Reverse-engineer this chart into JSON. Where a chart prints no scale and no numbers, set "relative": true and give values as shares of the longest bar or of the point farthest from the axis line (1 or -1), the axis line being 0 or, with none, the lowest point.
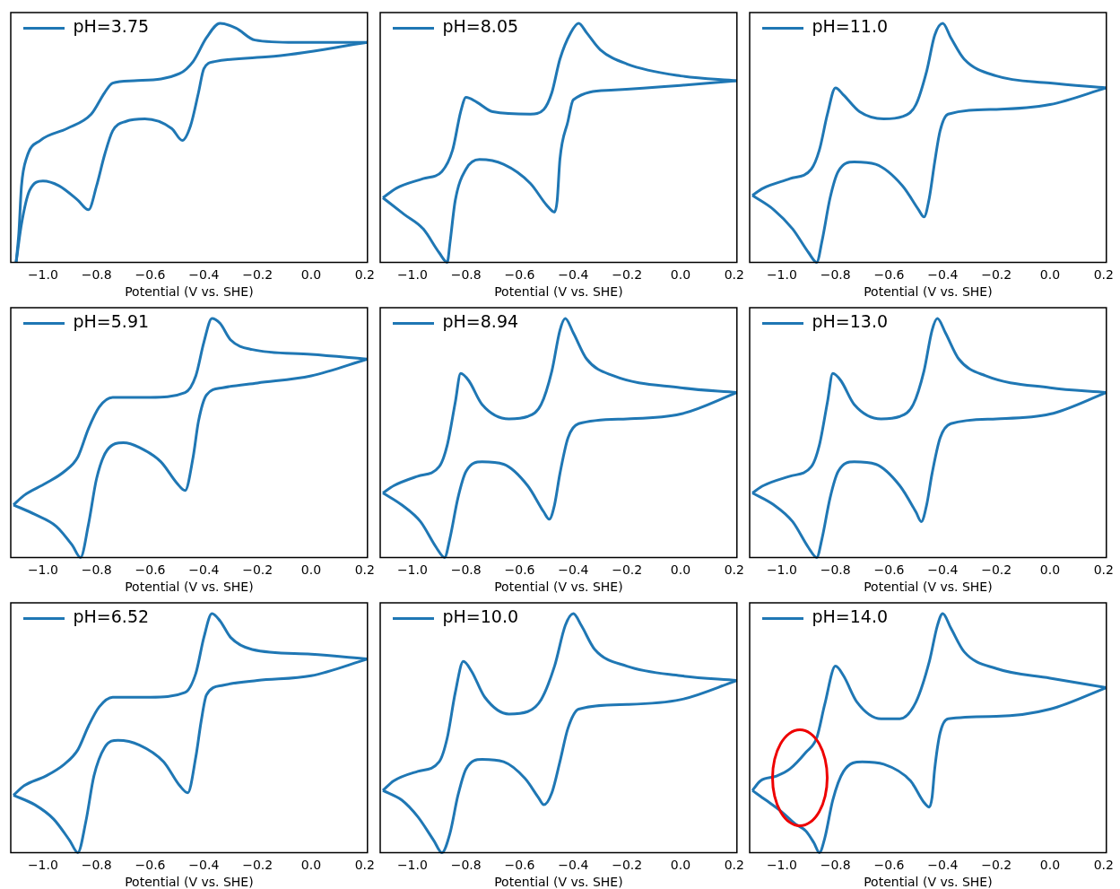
{
  "chart_data": [
    {
      "type": "line",
      "relative": true,
      "legend": "top left",
      "xlabel": "Potential (V vs. SHE)",
      "xlim": [
        -1.12,
        0.21
      ],
      "xticks": [
        {
          "value": -1,
          "label": "−1.0"
        },
        {
          "value": -0.8,
          "label": "−0.8"
        },
        {
          "value": -0.6,
          "label": "−0.6"
        },
        {
          "value": -0.4,
          "label": "−0.4"
        },
        {
          "value": -0.2,
          "label": "−0.2"
        },
        {
          "value": 0,
          "label": "0.0"
        },
        {
          "value": 0.2,
          "label": "0.2"
        }
      ],
      "series": [
        {
          "name": "pH=3.75",
          "color": "#1f77b4",
          "x": [
            0.21,
            -0.16,
            -0.36,
            -0.4,
            -0.42,
            -0.45,
            -0.48,
            -0.52,
            -0.62,
            -0.69,
            -0.74,
            -0.77,
            -0.8,
            -0.83,
            -0.87,
            -0.94,
            -1.0,
            -1.05,
            -1.08,
            -1.1
          ],
          "values": [
            0.92,
            0.86,
            0.84,
            0.81,
            0.71,
            0.57,
            0.51,
            0.56,
            0.6,
            0.59,
            0.55,
            0.45,
            0.32,
            0.22,
            0.26,
            0.32,
            0.34,
            0.3,
            0.16,
            0
          ]
        },
        {
          "color": "#1f77b4",
          "x": [
            -1.1,
            -1.09,
            -1.08,
            -1.06,
            -1.01,
            -0.91,
            -0.82,
            -0.77,
            -0.74,
            -0.66,
            -0.49,
            -0.44,
            -0.39,
            -0.34,
            -0.28,
            -0.21,
            -0.06,
            0.21
          ],
          "values": [
            0,
            0.12,
            0.32,
            0.44,
            0.51,
            0.56,
            0.62,
            0.71,
            0.75,
            0.76,
            0.79,
            0.84,
            0.94,
            1,
            0.98,
            0.93,
            0.92,
            0.92
          ]
        }
      ]
    },
    {
      "type": "line",
      "relative": true,
      "legend": "top left",
      "xlabel": "Potential (V vs. SHE)",
      "xlim": [
        -1.12,
        0.21
      ],
      "xticks": [
        {
          "value": -1,
          "label": "−1.0"
        },
        {
          "value": -0.8,
          "label": "−0.8"
        },
        {
          "value": -0.6,
          "label": "−0.6"
        },
        {
          "value": -0.4,
          "label": "−0.4"
        },
        {
          "value": -0.2,
          "label": "−0.2"
        },
        {
          "value": 0,
          "label": "0.0"
        },
        {
          "value": 0.2,
          "label": "0.2"
        }
      ],
      "series": [
        {
          "name": "pH=8.05",
          "color": "#1f77b4",
          "x": [
            0.21,
            0,
            -0.26,
            -0.4,
            -0.42,
            -0.45,
            -0.46,
            -0.47,
            -0.5,
            -0.56,
            -0.66,
            -0.75,
            -0.8,
            -0.84,
            -0.86,
            -0.87,
            -0.9,
            -0.96,
            -1.03,
            -1.11
          ],
          "values": [
            0.76,
            0.74,
            0.72,
            0.68,
            0.59,
            0.43,
            0.26,
            0.21,
            0.24,
            0.33,
            0.41,
            0.43,
            0.39,
            0.26,
            0.08,
            0,
            0.04,
            0.14,
            0.2,
            0.27
          ]
        },
        {
          "color": "#1f77b4",
          "x": [
            -1.11,
            -1.06,
            -0.96,
            -0.89,
            -0.85,
            -0.82,
            -0.8,
            -0.76,
            -0.7,
            -0.56,
            -0.51,
            -0.48,
            -0.45,
            -0.41,
            -0.38,
            -0.35,
            -0.3,
            -0.2,
            0,
            0.21
          ],
          "values": [
            0.27,
            0.31,
            0.35,
            0.38,
            0.47,
            0.63,
            0.69,
            0.67,
            0.63,
            0.62,
            0.64,
            0.71,
            0.85,
            0.96,
            1,
            0.96,
            0.89,
            0.83,
            0.78,
            0.76
          ]
        }
      ]
    },
    {
      "type": "line",
      "relative": true,
      "legend": "top left",
      "xlabel": "Potential (V vs. SHE)",
      "xlim": [
        -1.12,
        0.21
      ],
      "xticks": [
        {
          "value": -1,
          "label": "−1.0"
        },
        {
          "value": -0.8,
          "label": "−0.8"
        },
        {
          "value": -0.6,
          "label": "−0.6"
        },
        {
          "value": -0.4,
          "label": "−0.4"
        },
        {
          "value": -0.2,
          "label": "−0.2"
        },
        {
          "value": 0,
          "label": "0.0"
        },
        {
          "value": 0.2,
          "label": "0.2"
        }
      ],
      "series": [
        {
          "name": "pH=11.0",
          "color": "#1f77b4",
          "x": [
            0.21,
            0,
            -0.2,
            -0.38,
            -0.41,
            -0.43,
            -0.45,
            -0.47,
            -0.49,
            -0.55,
            -0.65,
            -0.73,
            -0.79,
            -0.82,
            -0.85,
            -0.87,
            -0.9,
            -0.96,
            -1.03,
            -1.11
          ],
          "values": [
            0.73,
            0.66,
            0.64,
            0.62,
            0.55,
            0.42,
            0.27,
            0.19,
            0.22,
            0.32,
            0.41,
            0.42,
            0.38,
            0.27,
            0.09,
            0,
            0.04,
            0.14,
            0.22,
            0.28
          ]
        },
        {
          "color": "#1f77b4",
          "x": [
            -1.11,
            -1.07,
            -0.97,
            -0.89,
            -0.86,
            -0.83,
            -0.8,
            -0.77,
            -0.71,
            -0.62,
            -0.55,
            -0.5,
            -0.46,
            -0.43,
            -0.4,
            -0.37,
            -0.32,
            -0.2,
            0,
            0.21
          ],
          "values": [
            0.28,
            0.31,
            0.35,
            0.39,
            0.47,
            0.62,
            0.73,
            0.7,
            0.63,
            0.6,
            0.61,
            0.66,
            0.8,
            0.95,
            1,
            0.94,
            0.85,
            0.78,
            0.75,
            0.73
          ]
        }
      ]
    },
    {
      "type": "line",
      "relative": true,
      "legend": "top left",
      "xlabel": "Potential (V vs. SHE)",
      "xlim": [
        -1.12,
        0.21
      ],
      "xticks": [
        {
          "value": -1,
          "label": "−1.0"
        },
        {
          "value": -0.8,
          "label": "−0.8"
        },
        {
          "value": -0.6,
          "label": "−0.6"
        },
        {
          "value": -0.4,
          "label": "−0.4"
        },
        {
          "value": -0.2,
          "label": "−0.2"
        },
        {
          "value": 0,
          "label": "0.0"
        },
        {
          "value": 0.2,
          "label": "0.2"
        }
      ],
      "series": [
        {
          "name": "pH=5.91",
          "color": "#1f77b4",
          "x": [
            0.21,
            0,
            -0.2,
            -0.33,
            -0.39,
            -0.42,
            -0.44,
            -0.47,
            -0.5,
            -0.56,
            -0.64,
            -0.7,
            -0.76,
            -0.8,
            -0.83,
            -0.86,
            -0.89,
            -0.95,
            -1.03,
            -1.11
          ],
          "values": [
            0.83,
            0.76,
            0.73,
            0.71,
            0.68,
            0.57,
            0.42,
            0.28,
            0.31,
            0.4,
            0.46,
            0.48,
            0.45,
            0.33,
            0.14,
            0,
            0.05,
            0.13,
            0.18,
            0.22
          ]
        },
        {
          "color": "#1f77b4",
          "x": [
            -1.11,
            -1.07,
            -0.99,
            -0.92,
            -0.87,
            -0.83,
            -0.79,
            -0.74,
            -0.6,
            -0.47,
            -0.43,
            -0.4,
            -0.37,
            -0.34,
            -0.3,
            -0.22,
            0,
            0.21
          ],
          "values": [
            0.22,
            0.26,
            0.31,
            0.36,
            0.42,
            0.54,
            0.63,
            0.67,
            0.67,
            0.69,
            0.76,
            0.9,
            1,
            0.98,
            0.91,
            0.87,
            0.85,
            0.83
          ]
        }
      ]
    },
    {
      "type": "line",
      "relative": true,
      "legend": "top left",
      "xlabel": "Potential (V vs. SHE)",
      "xlim": [
        -1.12,
        0.21
      ],
      "xticks": [
        {
          "value": -1,
          "label": "−1.0"
        },
        {
          "value": -0.8,
          "label": "−0.8"
        },
        {
          "value": -0.6,
          "label": "−0.6"
        },
        {
          "value": -0.4,
          "label": "−0.4"
        },
        {
          "value": -0.2,
          "label": "−0.2"
        },
        {
          "value": 0,
          "label": "0.0"
        },
        {
          "value": 0.2,
          "label": "0.2"
        }
      ],
      "series": [
        {
          "name": "pH=8.94",
          "color": "#1f77b4",
          "x": [
            0.21,
            0,
            -0.2,
            -0.38,
            -0.42,
            -0.45,
            -0.47,
            -0.49,
            -0.51,
            -0.57,
            -0.66,
            -0.74,
            -0.8,
            -0.83,
            -0.86,
            -0.88,
            -0.91,
            -0.97,
            -1.04,
            -1.11
          ],
          "values": [
            0.69,
            0.6,
            0.58,
            0.56,
            0.5,
            0.35,
            0.22,
            0.16,
            0.19,
            0.3,
            0.39,
            0.4,
            0.36,
            0.25,
            0.08,
            0,
            0.04,
            0.15,
            0.22,
            0.27
          ]
        },
        {
          "color": "#1f77b4",
          "x": [
            -1.11,
            -1.07,
            -0.98,
            -0.9,
            -0.87,
            -0.84,
            -0.82,
            -0.79,
            -0.74,
            -0.64,
            -0.57,
            -0.52,
            -0.48,
            -0.45,
            -0.43,
            -0.4,
            -0.35,
            -0.25,
            0,
            0.21
          ],
          "values": [
            0.27,
            0.3,
            0.34,
            0.38,
            0.47,
            0.65,
            0.77,
            0.74,
            0.64,
            0.58,
            0.59,
            0.64,
            0.78,
            0.95,
            1,
            0.94,
            0.83,
            0.76,
            0.71,
            0.69
          ]
        }
      ]
    },
    {
      "type": "line",
      "relative": true,
      "legend": "top left",
      "xlabel": "Potential (V vs. SHE)",
      "xlim": [
        -1.12,
        0.21
      ],
      "xticks": [
        {
          "value": -1,
          "label": "−1.0"
        },
        {
          "value": -0.8,
          "label": "−0.8"
        },
        {
          "value": -0.6,
          "label": "−0.6"
        },
        {
          "value": -0.4,
          "label": "−0.4"
        },
        {
          "value": -0.2,
          "label": "−0.2"
        },
        {
          "value": 0,
          "label": "0.0"
        },
        {
          "value": 0.2,
          "label": "0.2"
        }
      ],
      "series": [
        {
          "name": "pH=13.0",
          "color": "#1f77b4",
          "x": [
            0.21,
            0,
            -0.2,
            -0.37,
            -0.41,
            -0.44,
            -0.46,
            -0.48,
            -0.5,
            -0.56,
            -0.65,
            -0.73,
            -0.79,
            -0.82,
            -0.85,
            -0.87,
            -0.9,
            -0.96,
            -1.03,
            -1.11
          ],
          "values": [
            0.69,
            0.6,
            0.58,
            0.56,
            0.5,
            0.35,
            0.22,
            0.15,
            0.19,
            0.3,
            0.39,
            0.4,
            0.36,
            0.25,
            0.08,
            0,
            0.04,
            0.15,
            0.22,
            0.27
          ]
        },
        {
          "color": "#1f77b4",
          "x": [
            -1.11,
            -1.07,
            -0.97,
            -0.89,
            -0.86,
            -0.83,
            -0.81,
            -0.78,
            -0.73,
            -0.63,
            -0.56,
            -0.51,
            -0.47,
            -0.44,
            -0.42,
            -0.39,
            -0.34,
            -0.24,
            0,
            0.21
          ],
          "values": [
            0.27,
            0.3,
            0.34,
            0.38,
            0.47,
            0.65,
            0.77,
            0.74,
            0.64,
            0.58,
            0.59,
            0.64,
            0.78,
            0.95,
            1,
            0.94,
            0.83,
            0.76,
            0.71,
            0.69
          ]
        }
      ]
    },
    {
      "type": "line",
      "relative": true,
      "legend": "top left",
      "xlabel": "Potential (V vs. SHE)",
      "xlim": [
        -1.12,
        0.21
      ],
      "xticks": [
        {
          "value": -1,
          "label": "−1.0"
        },
        {
          "value": -0.8,
          "label": "−0.8"
        },
        {
          "value": -0.6,
          "label": "−0.6"
        },
        {
          "value": -0.4,
          "label": "−0.4"
        },
        {
          "value": -0.2,
          "label": "−0.2"
        },
        {
          "value": 0,
          "label": "0.0"
        },
        {
          "value": 0.2,
          "label": "0.2"
        }
      ],
      "series": [
        {
          "name": "pH=6.52",
          "color": "#1f77b4",
          "x": [
            0.21,
            0,
            -0.2,
            -0.33,
            -0.39,
            -0.41,
            -0.43,
            -0.46,
            -0.49,
            -0.55,
            -0.64,
            -0.72,
            -0.77,
            -0.81,
            -0.84,
            -0.87,
            -0.9,
            -0.96,
            -1.03,
            -1.11
          ],
          "values": [
            0.81,
            0.74,
            0.72,
            0.7,
            0.66,
            0.55,
            0.4,
            0.25,
            0.28,
            0.38,
            0.45,
            0.47,
            0.44,
            0.32,
            0.13,
            0,
            0.05,
            0.14,
            0.2,
            0.24
          ]
        },
        {
          "color": "#1f77b4",
          "x": [
            -1.11,
            -1.07,
            -0.99,
            -0.92,
            -0.87,
            -0.83,
            -0.79,
            -0.74,
            -0.6,
            -0.47,
            -0.43,
            -0.4,
            -0.37,
            -0.34,
            -0.3,
            -0.22,
            0,
            0.21
          ],
          "values": [
            0.24,
            0.28,
            0.32,
            0.37,
            0.43,
            0.53,
            0.61,
            0.65,
            0.65,
            0.67,
            0.75,
            0.9,
            1,
            0.97,
            0.9,
            0.85,
            0.83,
            0.81
          ]
        }
      ]
    },
    {
      "type": "line",
      "relative": true,
      "legend": "top left",
      "xlabel": "Potential (V vs. SHE)",
      "xlim": [
        -1.12,
        0.21
      ],
      "xticks": [
        {
          "value": -1,
          "label": "−1.0"
        },
        {
          "value": -0.8,
          "label": "−0.8"
        },
        {
          "value": -0.6,
          "label": "−0.6"
        },
        {
          "value": -0.4,
          "label": "−0.4"
        },
        {
          "value": -0.2,
          "label": "−0.2"
        },
        {
          "value": 0,
          "label": "0.0"
        },
        {
          "value": 0.2,
          "label": "0.2"
        }
      ],
      "series": [
        {
          "name": "pH=10.0",
          "color": "#1f77b4",
          "x": [
            0.21,
            0,
            -0.2,
            -0.38,
            -0.42,
            -0.45,
            -0.48,
            -0.51,
            -0.53,
            -0.58,
            -0.66,
            -0.74,
            -0.8,
            -0.83,
            -0.86,
            -0.89,
            -0.92,
            -0.98,
            -1.04,
            -1.11
          ],
          "values": [
            0.72,
            0.64,
            0.62,
            0.6,
            0.52,
            0.38,
            0.25,
            0.2,
            0.23,
            0.31,
            0.38,
            0.39,
            0.35,
            0.24,
            0.08,
            0,
            0.05,
            0.15,
            0.22,
            0.26
          ]
        },
        {
          "color": "#1f77b4",
          "x": [
            -1.11,
            -1.07,
            -0.98,
            -0.9,
            -0.87,
            -0.84,
            -0.81,
            -0.78,
            -0.73,
            -0.64,
            -0.57,
            -0.52,
            -0.47,
            -0.43,
            -0.4,
            -0.37,
            -0.32,
            -0.2,
            0,
            0.21
          ],
          "values": [
            0.26,
            0.3,
            0.34,
            0.38,
            0.48,
            0.67,
            0.8,
            0.76,
            0.65,
            0.58,
            0.59,
            0.64,
            0.78,
            0.95,
            1,
            0.95,
            0.85,
            0.78,
            0.74,
            0.72
          ]
        }
      ]
    },
    {
      "type": "line",
      "relative": true,
      "legend": "top left",
      "xlabel": "Potential (V vs. SHE)",
      "xlim": [
        -1.12,
        0.21
      ],
      "xticks": [
        {
          "value": -1,
          "label": "−1.0"
        },
        {
          "value": -0.8,
          "label": "−0.8"
        },
        {
          "value": -0.6,
          "label": "−0.6"
        },
        {
          "value": -0.4,
          "label": "−0.4"
        },
        {
          "value": -0.2,
          "label": "−0.2"
        },
        {
          "value": 0,
          "label": "0.0"
        },
        {
          "value": 0.2,
          "label": "0.2"
        }
      ],
      "series": [
        {
          "name": "pH=14.0",
          "color": "#1f77b4",
          "x": [
            0.21,
            0,
            -0.2,
            -0.38,
            -0.41,
            -0.43,
            -0.44,
            -0.45,
            -0.47,
            -0.52,
            -0.62,
            -0.7,
            -0.77,
            -0.81,
            -0.84,
            -0.86,
            -0.88,
            -0.91,
            -0.95,
            -1.0,
            -1.06,
            -1.11
          ],
          "values": [
            0.69,
            0.6,
            0.57,
            0.56,
            0.5,
            0.35,
            0.23,
            0.19,
            0.21,
            0.3,
            0.37,
            0.38,
            0.34,
            0.22,
            0.06,
            0,
            0.04,
            0.09,
            0.12,
            0.17,
            0.22,
            0.26
          ]
        },
        {
          "color": "#1f77b4",
          "x": [
            -1.11,
            -1.08,
            -1.02,
            -0.97,
            -0.91,
            -0.87,
            -0.84,
            -0.8,
            -0.77,
            -0.72,
            -0.63,
            -0.56,
            -0.5,
            -0.45,
            -0.42,
            -0.4,
            -0.37,
            -0.32,
            -0.2,
            0,
            0.21
          ],
          "values": [
            0.26,
            0.3,
            0.32,
            0.35,
            0.42,
            0.48,
            0.62,
            0.78,
            0.74,
            0.63,
            0.56,
            0.56,
            0.63,
            0.8,
            0.95,
            1,
            0.94,
            0.84,
            0.77,
            0.73,
            0.69
          ]
        }
      ]
    }
  ]
}
